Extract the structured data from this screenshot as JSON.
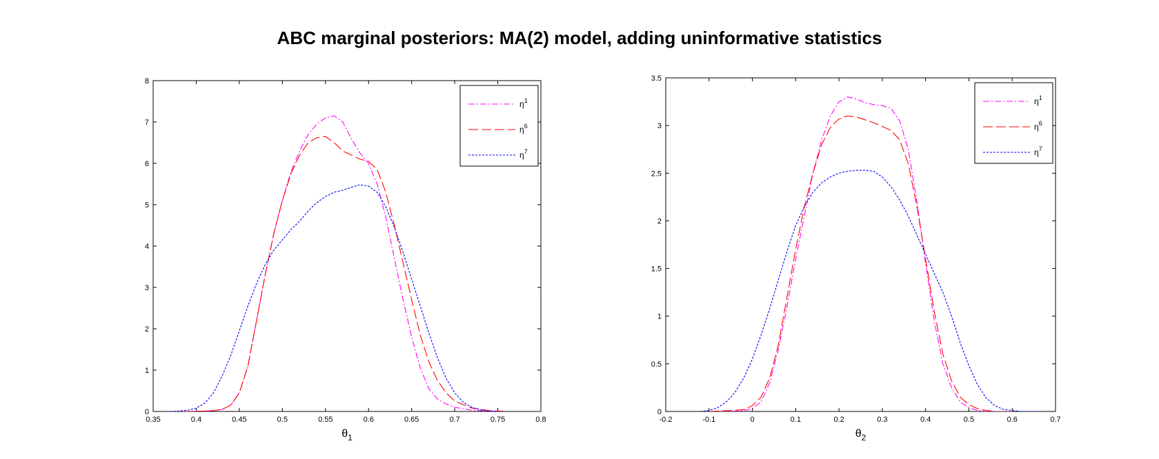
{
  "figure_title": "ABC marginal posteriors: MA(2) model, adding uninformative statistics",
  "colors": {
    "eta1": "#ff00ff",
    "eta6": "#ff0000",
    "eta7": "#0000ff",
    "axes": "#000000"
  },
  "chart_data": [
    {
      "type": "line",
      "title": "",
      "xlabel": "θ",
      "xlabel_sub": "1",
      "ylabel": "",
      "xlim": [
        0.35,
        0.8
      ],
      "ylim": [
        0,
        8
      ],
      "xticks": [
        0.35,
        0.4,
        0.45,
        0.5,
        0.55,
        0.6,
        0.65,
        0.7,
        0.75,
        0.8
      ],
      "xtick_labels": [
        "0.35",
        "0.4",
        "0.45",
        "0.5",
        "0.55",
        "0.6",
        "0.65",
        "0.7",
        "0.75",
        "0.8"
      ],
      "yticks": [
        0,
        1,
        2,
        3,
        4,
        5,
        6,
        7,
        8
      ],
      "ytick_labels": [
        "0",
        "1",
        "2",
        "3",
        "4",
        "5",
        "6",
        "7",
        "8"
      ],
      "grid": false,
      "legend_position": "top-right",
      "series": [
        {
          "name": "η",
          "name_sup": "1",
          "color_key": "eta1",
          "style": "dashdot",
          "x": [
            0.37,
            0.39,
            0.41,
            0.42,
            0.43,
            0.44,
            0.45,
            0.46,
            0.47,
            0.48,
            0.49,
            0.5,
            0.51,
            0.52,
            0.53,
            0.54,
            0.55,
            0.56,
            0.57,
            0.58,
            0.59,
            0.6,
            0.61,
            0.62,
            0.63,
            0.64,
            0.65,
            0.66,
            0.67,
            0.68,
            0.69,
            0.7,
            0.72,
            0.74,
            0.76
          ],
          "y": [
            0,
            0,
            0.01,
            0.02,
            0.05,
            0.15,
            0.45,
            1.1,
            2.2,
            3.3,
            4.3,
            5.1,
            5.8,
            6.3,
            6.7,
            6.95,
            7.1,
            7.15,
            7.0,
            6.6,
            6.25,
            6.0,
            5.5,
            4.7,
            3.7,
            2.7,
            1.8,
            1.05,
            0.55,
            0.3,
            0.18,
            0.1,
            0.03,
            0.01,
            0
          ]
        },
        {
          "name": "η",
          "name_sup": "6",
          "color_key": "eta6",
          "style": "dashed",
          "x": [
            0.37,
            0.39,
            0.41,
            0.42,
            0.43,
            0.44,
            0.45,
            0.46,
            0.47,
            0.48,
            0.49,
            0.5,
            0.51,
            0.52,
            0.53,
            0.54,
            0.55,
            0.56,
            0.57,
            0.58,
            0.59,
            0.6,
            0.61,
            0.62,
            0.63,
            0.64,
            0.65,
            0.66,
            0.67,
            0.68,
            0.69,
            0.7,
            0.72,
            0.74,
            0.76
          ],
          "y": [
            0,
            0,
            0.01,
            0.02,
            0.05,
            0.15,
            0.45,
            1.1,
            2.2,
            3.3,
            4.3,
            5.1,
            5.75,
            6.2,
            6.5,
            6.62,
            6.65,
            6.5,
            6.3,
            6.2,
            6.1,
            6.05,
            5.85,
            5.3,
            4.5,
            3.6,
            2.7,
            1.85,
            1.2,
            0.75,
            0.45,
            0.25,
            0.08,
            0.02,
            0
          ]
        },
        {
          "name": "η",
          "name_sup": "7",
          "color_key": "eta7",
          "style": "dotted",
          "x": [
            0.37,
            0.38,
            0.39,
            0.4,
            0.41,
            0.42,
            0.43,
            0.44,
            0.45,
            0.46,
            0.47,
            0.48,
            0.49,
            0.5,
            0.51,
            0.52,
            0.53,
            0.54,
            0.55,
            0.56,
            0.57,
            0.58,
            0.59,
            0.6,
            0.61,
            0.62,
            0.63,
            0.64,
            0.65,
            0.66,
            0.67,
            0.68,
            0.69,
            0.7,
            0.71,
            0.72,
            0.73,
            0.74,
            0.75,
            0.76
          ],
          "y": [
            0,
            0.01,
            0.03,
            0.08,
            0.2,
            0.45,
            0.85,
            1.35,
            1.95,
            2.55,
            3.1,
            3.55,
            3.9,
            4.15,
            4.4,
            4.6,
            4.85,
            5.05,
            5.2,
            5.3,
            5.35,
            5.42,
            5.48,
            5.45,
            5.3,
            4.95,
            4.45,
            3.85,
            3.2,
            2.55,
            1.9,
            1.3,
            0.8,
            0.45,
            0.22,
            0.1,
            0.04,
            0.01,
            0,
            0
          ]
        }
      ]
    },
    {
      "type": "line",
      "title": "",
      "xlabel": "θ",
      "xlabel_sub": "2",
      "ylabel": "",
      "xlim": [
        -0.2,
        0.7
      ],
      "ylim": [
        0,
        3.5
      ],
      "xticks": [
        -0.2,
        -0.1,
        0,
        0.1,
        0.2,
        0.3,
        0.4,
        0.5,
        0.6,
        0.7
      ],
      "xtick_labels": [
        "-0.2",
        "-0.1",
        "0",
        "0.1",
        "0.2",
        "0.3",
        "0.4",
        "0.5",
        "0.6",
        "0.7"
      ],
      "yticks": [
        0,
        0.5,
        1,
        1.5,
        2,
        2.5,
        3,
        3.5
      ],
      "ytick_labels": [
        "0",
        "0.5",
        "1",
        "1.5",
        "2",
        "2.5",
        "3",
        "3.5"
      ],
      "grid": false,
      "legend_position": "top-right",
      "series": [
        {
          "name": "η",
          "name_sup": "1",
          "color_key": "eta1",
          "style": "dashdot",
          "x": [
            -0.1,
            -0.05,
            -0.02,
            0,
            0.02,
            0.04,
            0.06,
            0.08,
            0.1,
            0.12,
            0.14,
            0.16,
            0.18,
            0.2,
            0.22,
            0.24,
            0.26,
            0.28,
            0.3,
            0.32,
            0.34,
            0.36,
            0.38,
            0.4,
            0.42,
            0.44,
            0.46,
            0.48,
            0.5,
            0.52,
            0.54,
            0.56,
            0.6
          ],
          "y": [
            0,
            0,
            0.01,
            0.03,
            0.1,
            0.3,
            0.65,
            1.1,
            1.6,
            2.05,
            2.5,
            2.85,
            3.1,
            3.25,
            3.3,
            3.28,
            3.24,
            3.22,
            3.21,
            3.18,
            3.05,
            2.75,
            2.2,
            1.55,
            0.95,
            0.5,
            0.25,
            0.1,
            0.04,
            0.01,
            0,
            0,
            0
          ]
        },
        {
          "name": "η",
          "name_sup": "6",
          "color_key": "eta6",
          "style": "dashed",
          "x": [
            -0.1,
            -0.05,
            -0.02,
            0,
            0.02,
            0.04,
            0.06,
            0.08,
            0.1,
            0.12,
            0.14,
            0.16,
            0.18,
            0.2,
            0.22,
            0.24,
            0.26,
            0.28,
            0.3,
            0.32,
            0.34,
            0.36,
            0.38,
            0.4,
            0.42,
            0.44,
            0.46,
            0.48,
            0.5,
            0.52,
            0.54,
            0.56,
            0.6
          ],
          "y": [
            0,
            0.01,
            0.02,
            0.06,
            0.15,
            0.35,
            0.7,
            1.2,
            1.7,
            2.15,
            2.5,
            2.8,
            2.98,
            3.07,
            3.1,
            3.09,
            3.06,
            3.03,
            2.99,
            2.95,
            2.85,
            2.6,
            2.15,
            1.6,
            1.05,
            0.6,
            0.32,
            0.15,
            0.07,
            0.03,
            0.01,
            0,
            0
          ]
        },
        {
          "name": "η",
          "name_sup": "7",
          "color_key": "eta7",
          "style": "dotted",
          "x": [
            -0.12,
            -0.1,
            -0.08,
            -0.06,
            -0.04,
            -0.02,
            0,
            0.02,
            0.04,
            0.06,
            0.08,
            0.1,
            0.12,
            0.14,
            0.16,
            0.18,
            0.2,
            0.22,
            0.24,
            0.26,
            0.28,
            0.3,
            0.32,
            0.34,
            0.36,
            0.38,
            0.4,
            0.42,
            0.44,
            0.46,
            0.48,
            0.5,
            0.52,
            0.54,
            0.56,
            0.58,
            0.6,
            0.62,
            0.64,
            0.66
          ],
          "y": [
            0,
            0.01,
            0.04,
            0.1,
            0.2,
            0.35,
            0.55,
            0.8,
            1.08,
            1.38,
            1.68,
            1.95,
            2.15,
            2.3,
            2.4,
            2.46,
            2.5,
            2.52,
            2.53,
            2.53,
            2.52,
            2.46,
            2.36,
            2.22,
            2.05,
            1.85,
            1.65,
            1.45,
            1.25,
            1.0,
            0.72,
            0.48,
            0.28,
            0.14,
            0.06,
            0.02,
            0.01,
            0,
            0,
            0
          ]
        }
      ]
    }
  ]
}
